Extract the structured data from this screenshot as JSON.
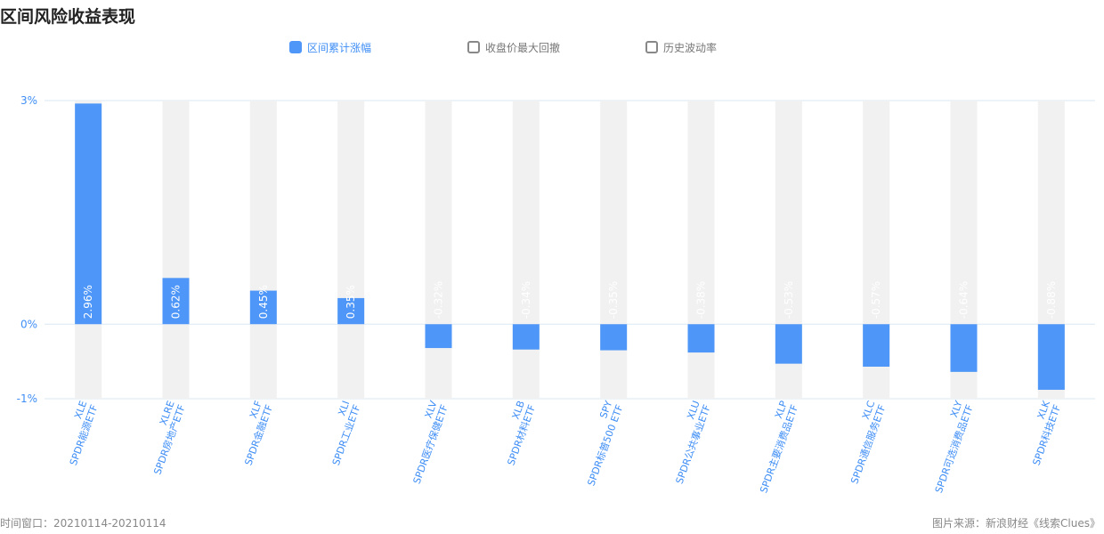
{
  "page": {
    "title": "区间风险收益表现",
    "footer_left": "时间窗口：20210114-20210114",
    "footer_right": "图片来源：新浪财经《线索Clues》"
  },
  "legend": [
    {
      "label": "区间累计涨幅",
      "active": true
    },
    {
      "label": "收盘价最大回撤",
      "active": false
    },
    {
      "label": "历史波动率",
      "active": false
    }
  ],
  "colors": {
    "bar": "#4e96f7",
    "track": "#f1f1f1",
    "axis_text": "#3f8ef5",
    "grid": "#dbe8f3"
  },
  "chart_data": {
    "type": "bar",
    "title": "",
    "xlabel": "",
    "ylabel": "",
    "ylim": [
      -1,
      3
    ],
    "yticks": [
      {
        "value": 3,
        "label": "3%"
      },
      {
        "value": 0,
        "label": "0%"
      },
      {
        "value": -1,
        "label": "-1%"
      }
    ],
    "categories": [
      {
        "code": "XLE",
        "name": "SPDR能源ETF"
      },
      {
        "code": "XLRE",
        "name": "SPDR房地产ETF"
      },
      {
        "code": "XLF",
        "name": "SPDR金融ETF"
      },
      {
        "code": "XLI",
        "name": "SPDR工业ETF"
      },
      {
        "code": "XLV",
        "name": "SPDR医疗保健ETF"
      },
      {
        "code": "XLB",
        "name": "SPDR材料ETF"
      },
      {
        "code": "SPY",
        "name": "SPDR标普500 ETF"
      },
      {
        "code": "XLU",
        "name": "SPDR公共事业ETF"
      },
      {
        "code": "XLP",
        "name": "SPDR主要消费品ETF"
      },
      {
        "code": "XLC",
        "name": "SPDR通信服务ETF"
      },
      {
        "code": "XLY",
        "name": "SPDR可选消费品ETF"
      },
      {
        "code": "XLK",
        "name": "SPDR科技ETF"
      }
    ],
    "values": [
      2.96,
      0.62,
      0.45,
      0.35,
      -0.32,
      -0.34,
      -0.35,
      -0.38,
      -0.53,
      -0.57,
      -0.64,
      -0.88
    ],
    "value_labels": [
      "2.96%",
      "0.62%",
      "0.45%",
      "0.35%",
      "-0.32%",
      "-0.34%",
      "-0.35%",
      "-0.38%",
      "-0.53%",
      "-0.57%",
      "-0.64%",
      "-0.88%"
    ],
    "grid": true,
    "legend_position": "top"
  }
}
